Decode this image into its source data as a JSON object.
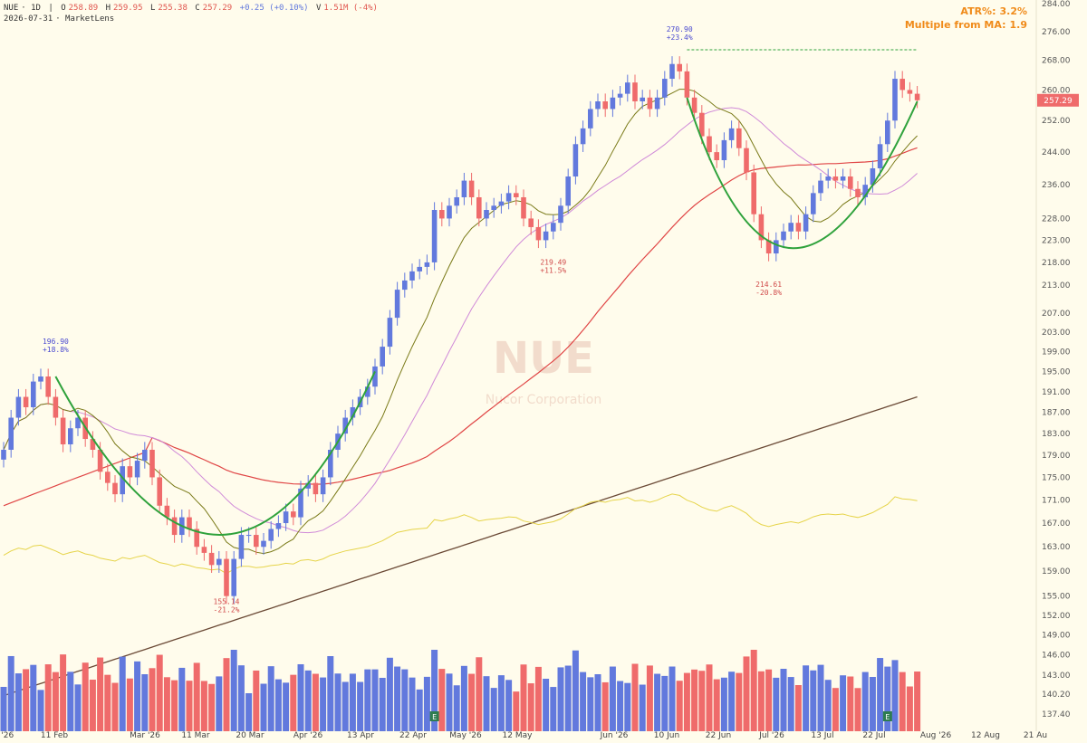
{
  "header": {
    "symbol": "NUE",
    "interval": "1D",
    "o_label": "O",
    "open": "258.89",
    "h_label": "H",
    "high": "259.95",
    "l_label": "L",
    "low": "255.38",
    "c_label": "C",
    "close": "257.29",
    "change": "+0.25 (+0.10%)",
    "v_label": "V",
    "volume": "1.51M (-4%)",
    "date": "2026-07-31",
    "source": "MarketLens"
  },
  "stats": {
    "atr_label": "ATR%:",
    "atr_value": "3.2%",
    "mult_label": "Multiple from MA:",
    "mult_value": "1.9"
  },
  "watermark": {
    "ticker": "NUE",
    "company": "Nucor Corporation"
  },
  "colors": {
    "up": "#6279dd",
    "down": "#ef6b6b",
    "background": "#fffcec",
    "ma_fast": "#7a7a18",
    "ma_mid": "#d08ad8",
    "ma_50": "#e04545",
    "ma_200": "#6b4a36",
    "rs_line": "#e6d44a",
    "cup_pattern": "#2fa23c",
    "last_price": "#ef6b6b",
    "earnings": "#2e7d4f"
  },
  "chart_data": {
    "type": "candlestick",
    "ylim": [
      135,
      284
    ],
    "y_scale": "log",
    "y_ticks": [
      137.4,
      140.2,
      143.0,
      146.0,
      149.0,
      152.0,
      155.0,
      159.0,
      163.0,
      167.0,
      171.0,
      175.0,
      179.0,
      183.0,
      187.0,
      191.0,
      195.0,
      199.0,
      203.0,
      207.0,
      213.0,
      218.0,
      223.0,
      228.0,
      236.0,
      244.0,
      252.0,
      260.0,
      268.0,
      276.0,
      284.0
    ],
    "x_ticks": [
      "b '26",
      "11 Feb",
      "Mar '26",
      "11 Mar",
      "20 Mar",
      "Apr '26",
      "13 Apr",
      "22 Apr",
      "May '26",
      "12 May",
      "Jun '26",
      "10 Jun",
      "22 Jun",
      "Jul '26",
      "13 Jul",
      "22 Jul",
      "Aug '26",
      "12 Aug",
      "21 Au"
    ],
    "last_price": 257.29,
    "closes": [
      180,
      186,
      190,
      188,
      193,
      194,
      190,
      186,
      181,
      184,
      186,
      182,
      180,
      176,
      174,
      172,
      177,
      175,
      178,
      180,
      175,
      170,
      168,
      165,
      168,
      166,
      163,
      162,
      160,
      161,
      155,
      161,
      165,
      165,
      163,
      164,
      166,
      167,
      169,
      168,
      173,
      174,
      172,
      175,
      180,
      183,
      186,
      188,
      190,
      192,
      196,
      200,
      206,
      212,
      214,
      216,
      217,
      218,
      230,
      228,
      231,
      233,
      237,
      233,
      228,
      230,
      231,
      232,
      234,
      233,
      228,
      226,
      223,
      225,
      227,
      231,
      238,
      246,
      250,
      255,
      257,
      255,
      258,
      259,
      262,
      257,
      258,
      255,
      258,
      263,
      267,
      265,
      258,
      254,
      248,
      244,
      242,
      247,
      250,
      245,
      239,
      229,
      223,
      220,
      223,
      225,
      227,
      225,
      229,
      234,
      237,
      238,
      237,
      238,
      235,
      233,
      236,
      240,
      246,
      252,
      263,
      260,
      259,
      257.29
    ],
    "annotations": [
      {
        "text": "196.90",
        "pct": "+18.8%",
        "kind": "high"
      },
      {
        "text": "155.14",
        "pct": "-21.2%",
        "kind": "low"
      },
      {
        "text": "219.49",
        "pct": "+11.5%",
        "kind": "low"
      },
      {
        "text": "270.90",
        "pct": "+23.4%",
        "kind": "high"
      },
      {
        "text": "214.61",
        "pct": "-20.8%",
        "kind": "low"
      }
    ],
    "earnings_marker": "E"
  }
}
